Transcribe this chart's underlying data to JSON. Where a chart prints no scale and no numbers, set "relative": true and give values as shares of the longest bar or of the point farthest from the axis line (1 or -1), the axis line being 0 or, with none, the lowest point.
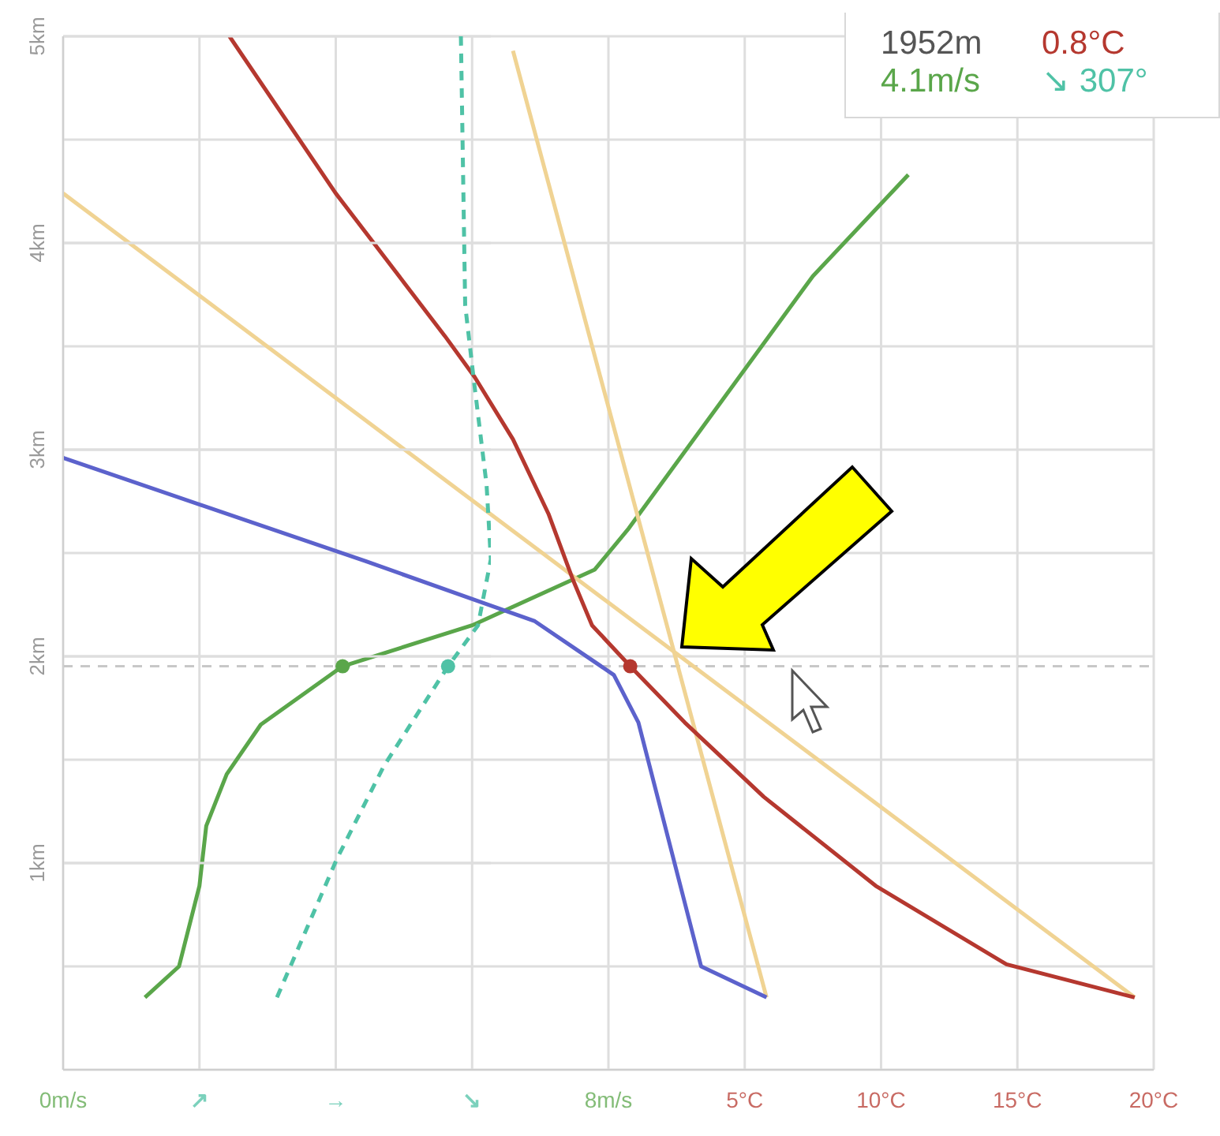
{
  "chart_data": [
    {
      "type": "line",
      "ylim": [
        0,
        5
      ],
      "yticks": [
        {
          "value": 0,
          "label": null
        },
        {
          "value": 0.5,
          "label": null
        },
        {
          "value": 1,
          "label": null
        },
        {
          "value": 1.5,
          "label": null
        },
        {
          "value": 2,
          "label": null
        },
        {
          "value": 2.5,
          "label": null
        },
        {
          "value": 3,
          "label": null
        },
        {
          "value": 3.5,
          "label": null
        },
        {
          "value": 4,
          "label": null
        },
        {
          "value": 4.5,
          "label": null
        },
        {
          "value": 5,
          "label": null
        }
      ],
      "xlim": [
        0,
        16
      ],
      "xticks": [
        {
          "value": 0,
          "label": "0m/s"
        },
        {
          "value": 2,
          "label": "↗"
        },
        {
          "value": 4,
          "label": "→"
        },
        {
          "value": 6,
          "label": "↘"
        },
        {
          "value": 8,
          "label": "8m/s"
        },
        {
          "value": 10,
          "label": null
        },
        {
          "value": 12,
          "label": null
        },
        {
          "value": 14,
          "label": null
        },
        {
          "value": 16,
          "label": null
        }
      ],
      "grid": true,
      "tick_labels": "x",
      "marker": "none",
      "line_style": "solid",
      "ref_lines": [
        {
          "axis": "y",
          "value": 1.952,
          "color": "#c8c8c8",
          "line_style": "dashed"
        }
      ],
      "series": [
        {
          "color": "#5aa64a",
          "x": [
            1.2,
            1.7,
            2.0,
            2.1,
            2.4,
            2.9,
            4.1,
            6.0,
            7.8,
            8.3,
            11.0,
            12.4
          ],
          "values": [
            0.35,
            0.5,
            0.89,
            1.18,
            1.43,
            1.67,
            1.952,
            2.15,
            2.42,
            2.62,
            3.84,
            4.33
          ]
        },
        {
          "type": "scatter",
          "color": "#5aa64a",
          "marker": "circle",
          "x": [
            4.1
          ],
          "values": [
            1.952
          ]
        }
      ]
    },
    {
      "type": "line",
      "ylim": [
        0,
        5
      ],
      "xlim": [
        -20,
        20
      ],
      "xticks": [
        {
          "value": 5,
          "label": "5°C"
        },
        {
          "value": 10,
          "label": "10°C"
        },
        {
          "value": 15,
          "label": "15°C"
        },
        {
          "value": 20,
          "label": "20°C"
        }
      ],
      "tick_labels": "x",
      "marker": "none",
      "line_style": "solid",
      "annotations": [
        "1952m",
        "0.8°C",
        "4.1m/s",
        "↘ 307°"
      ],
      "series": [
        {
          "color": "#f0d393",
          "x": [
            -20,
            19.3
          ],
          "values": [
            4.24,
            0.35
          ]
        },
        {
          "color": "#f0d393",
          "x": [
            -3.5,
            5.8
          ],
          "values": [
            4.93,
            0.35
          ]
        },
        {
          "color": "#5c62cc",
          "x": [
            -20,
            -8.9,
            -2.7,
            0.2,
            1.1,
            3.4,
            5.8
          ],
          "values": [
            2.96,
            2.46,
            2.17,
            1.91,
            1.68,
            0.5,
            0.35
          ]
        },
        {
          "color": "#b5382f",
          "x": [
            -13.9,
            -10.0,
            -6.0,
            -4.9,
            -3.5,
            -2.2,
            -1.3,
            -0.6,
            0.8,
            2.8,
            5.7,
            9.8,
            14.6,
            19.3
          ],
          "values": [
            5,
            4.24,
            3.55,
            3.35,
            3.05,
            2.69,
            2.37,
            2.15,
            1.952,
            1.68,
            1.32,
            0.89,
            0.51,
            0.35
          ]
        },
        {
          "type": "scatter",
          "color": "#b5382f",
          "marker": "circle",
          "x": [
            0.8
          ],
          "values": [
            1.952
          ]
        }
      ]
    },
    {
      "type": "line",
      "relative": true,
      "orientation": "horizontal",
      "ylim": [
        0,
        5
      ],
      "yticks": [
        {
          "value": 1,
          "label": "1km"
        },
        {
          "value": 2,
          "label": "2km"
        },
        {
          "value": 3,
          "label": "3km"
        },
        {
          "value": 4,
          "label": "4km"
        },
        {
          "value": 5,
          "label": "5km"
        }
      ],
      "grid": "y",
      "tick_labels": "y",
      "marker": "none",
      "line_style": "dashed",
      "series": [
        {
          "color": "#4fc2a6",
          "x": [
            0.35,
            1.02,
            1.47,
            1.952,
            2.15,
            2.47,
            2.83,
            3.34,
            3.7,
            5
          ],
          "values": [
            0.5,
            0.64,
            0.75,
            0.9,
            0.97,
            1,
            0.99,
            0.96,
            0.94,
            0.93
          ]
        },
        {
          "type": "scatter",
          "color": "#4fc2a6",
          "marker": "circle",
          "x": [
            1.952
          ],
          "values": [
            0.9
          ]
        }
      ]
    }
  ]
}
